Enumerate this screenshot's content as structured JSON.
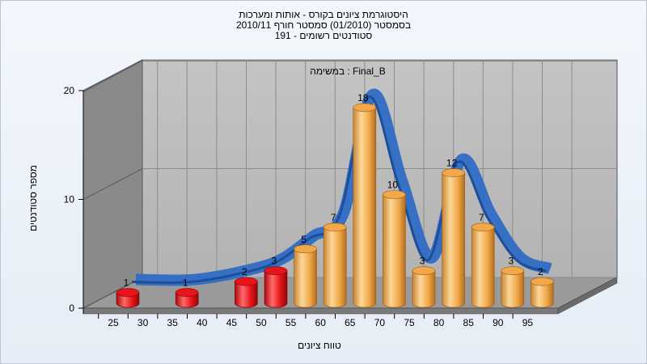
{
  "header": {
    "title_line1": "היסטוגרמת ציונים בקורס - אותות ומערכות",
    "title_line2": "בסמסטר  (01/2010)  סמסטר חורף 2010/11",
    "title_line3": "סטודנטים רשומים - 191"
  },
  "chart_data": {
    "type": "bar",
    "annotation": "Final_B : במשימה",
    "xlabel": "טווח ציונים",
    "ylabel": "מספר סטודנטים",
    "ylim": [
      0,
      20
    ],
    "y_ticks": [
      "0",
      "10",
      "20"
    ],
    "x_ticks": [
      "25",
      "30",
      "35",
      "40",
      "45",
      "50",
      "55",
      "60",
      "65",
      "70",
      "75",
      "80",
      "85",
      "90",
      "95"
    ],
    "bins": [
      25,
      35,
      45,
      50,
      55,
      60,
      65,
      70,
      75,
      80,
      85,
      90,
      95
    ],
    "values": [
      1,
      1,
      2,
      3,
      5,
      7,
      18,
      10,
      3,
      12,
      7,
      3,
      2
    ],
    "bar_colors": {
      "fail": "#e8141a",
      "pass": "#f0a848"
    },
    "fail_below": 55,
    "curve_color": "#2f6cc4",
    "curve_shadow_color": "#6e6e6e",
    "grid": true
  }
}
